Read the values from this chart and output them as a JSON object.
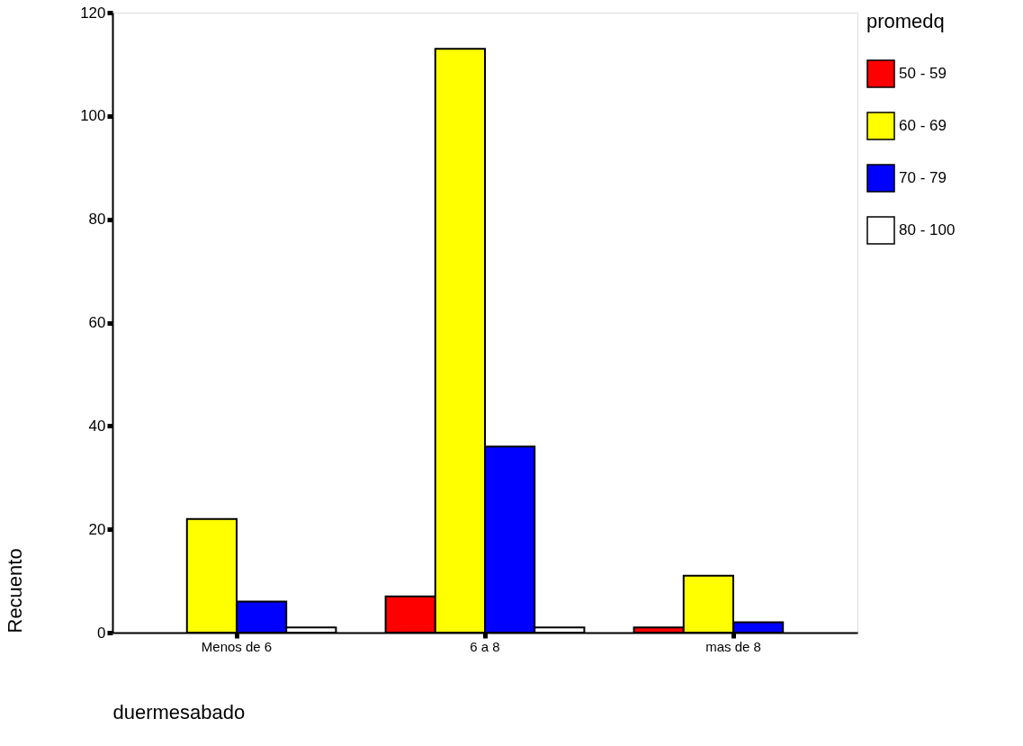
{
  "chart_data": {
    "type": "bar",
    "xlabel": "duermesabado",
    "ylabel": "Recuento",
    "legend_title": "promedq",
    "legend": "right",
    "grid": false,
    "categories": [
      "Menos de 6",
      "6 a 8",
      "mas de 8"
    ],
    "ylim": [
      0,
      120
    ],
    "yticks": [
      0,
      20,
      40,
      60,
      80,
      100,
      120
    ],
    "series": [
      {
        "name": "50 - 59",
        "color": "#ff0000",
        "values": [
          null,
          7,
          1
        ]
      },
      {
        "name": "60 - 69",
        "color": "#ffff00",
        "values": [
          22,
          113,
          11
        ]
      },
      {
        "name": "70 - 79",
        "color": "#0000ff",
        "values": [
          6,
          36,
          2
        ]
      },
      {
        "name": "80 - 100",
        "color": "#ffffff",
        "values": [
          1,
          1,
          null
        ]
      }
    ]
  }
}
